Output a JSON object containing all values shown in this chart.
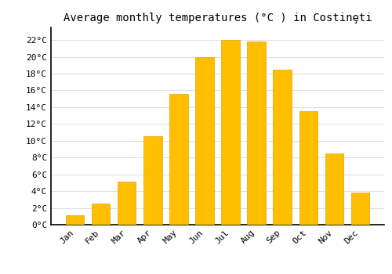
{
  "months": [
    "Jan",
    "Feb",
    "Mar",
    "Apr",
    "May",
    "Jun",
    "Jul",
    "Aug",
    "Sep",
    "Oct",
    "Nov",
    "Dec"
  ],
  "temperatures": [
    1.1,
    2.5,
    5.1,
    10.5,
    15.6,
    20.0,
    22.0,
    21.8,
    18.5,
    13.5,
    8.5,
    3.8
  ],
  "bar_color": "#FFBE00",
  "bar_edge_color": "#E8A000",
  "title": "Average monthly temperatures (°C ) in Costinȩti",
  "ylabel_ticks": [
    "0°C",
    "2°C",
    "4°C",
    "6°C",
    "8°C",
    "10°C",
    "12°C",
    "14°C",
    "16°C",
    "18°C",
    "20°C",
    "22°C"
  ],
  "ytick_values": [
    0,
    2,
    4,
    6,
    8,
    10,
    12,
    14,
    16,
    18,
    20,
    22
  ],
  "ylim": [
    0,
    23.5
  ],
  "background_color": "#ffffff",
  "plot_bg_color": "#ffffff",
  "grid_color": "#dddddd",
  "title_fontsize": 10,
  "tick_fontsize": 8,
  "font_family": "monospace"
}
